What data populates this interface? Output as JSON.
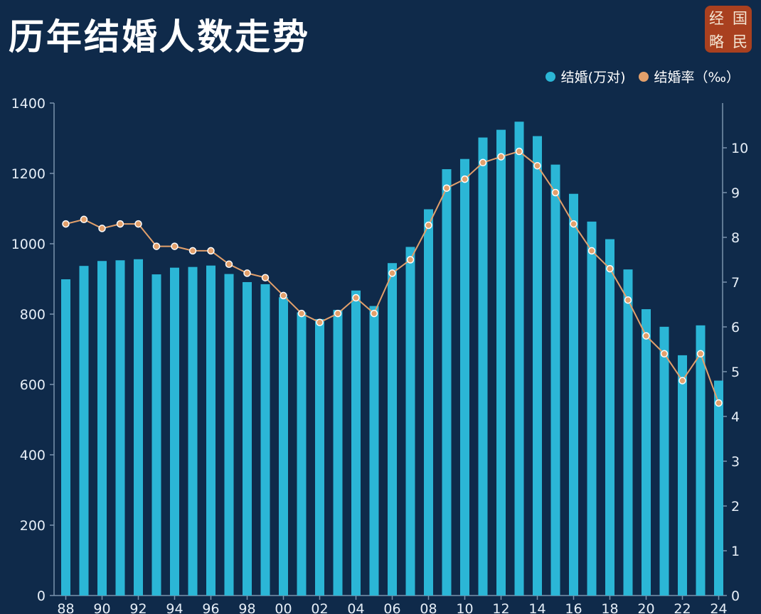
{
  "header": {
    "title": "历年结婚人数走势"
  },
  "logo": {
    "chars": [
      "经",
      "国",
      "略",
      "民"
    ]
  },
  "legend": [
    {
      "label": "结婚(万对)",
      "color": "#2bb6d6"
    },
    {
      "label": "结婚率（‰）",
      "color": "#e3a06b"
    }
  ],
  "chart_data": {
    "type": "bar",
    "title": "历年结婚人数走势",
    "categories": [
      "1988",
      "1989",
      "1990",
      "1991",
      "1992",
      "1993",
      "1994",
      "1995",
      "1996",
      "1997",
      "1998",
      "1999",
      "2000",
      "2001",
      "2002",
      "2003",
      "2004",
      "2005",
      "2006",
      "2007",
      "2008",
      "2009",
      "2010",
      "2011",
      "2012",
      "2013",
      "2014",
      "2015",
      "2016",
      "2017",
      "2018",
      "2019",
      "2020",
      "2021",
      "2022",
      "2023",
      "2024"
    ],
    "series": [
      {
        "name": "结婚(万对)",
        "type": "bar",
        "axis": "left",
        "color": "#2bb6d6",
        "values": [
          899,
          937,
          951,
          953,
          956,
          913,
          932,
          934,
          938,
          914,
          891,
          885,
          848,
          805,
          786,
          812,
          867,
          823,
          945,
          991,
          1098,
          1212,
          1241,
          1302,
          1324,
          1347,
          1306,
          1225,
          1142,
          1063,
          1013,
          927,
          814,
          764,
          683,
          768,
          611
        ]
      },
      {
        "name": "结婚率（‰）",
        "type": "line",
        "axis": "right",
        "color": "#e3a06b",
        "values": [
          8.3,
          8.4,
          8.2,
          8.3,
          8.3,
          7.8,
          7.8,
          7.7,
          7.7,
          7.4,
          7.2,
          7.1,
          6.7,
          6.3,
          6.1,
          6.3,
          6.65,
          6.3,
          7.2,
          7.5,
          8.27,
          9.1,
          9.3,
          9.67,
          9.8,
          9.92,
          9.6,
          9.0,
          8.3,
          7.7,
          7.3,
          6.6,
          5.8,
          5.4,
          4.8,
          5.4,
          4.3
        ]
      }
    ],
    "ylim_left": [
      0,
      1400
    ],
    "yticks_left": [
      0,
      200,
      400,
      600,
      800,
      1000,
      1200,
      1400
    ],
    "ylim_right": [
      0,
      11
    ],
    "yticks_right": [
      0,
      1,
      2,
      3,
      4,
      5,
      6,
      7,
      8,
      9,
      10
    ],
    "xtick_labels": [
      "88",
      "90",
      "92",
      "94",
      "96",
      "98",
      "00",
      "02",
      "04",
      "06",
      "08",
      "10",
      "12",
      "14",
      "16",
      "18",
      "20",
      "22",
      "24"
    ],
    "legend_position": "top-right",
    "grid": false
  }
}
